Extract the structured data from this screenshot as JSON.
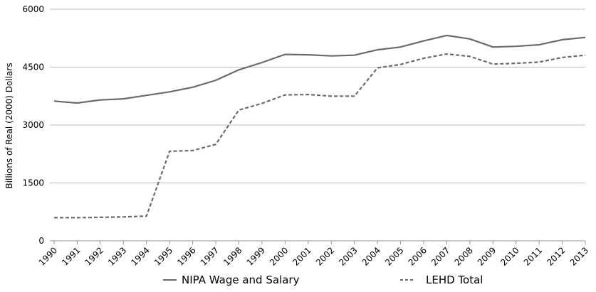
{
  "chart_data": {
    "type": "line",
    "title": "",
    "xlabel": "",
    "ylabel": "Billions of Real (2000) Dollars",
    "categories": [
      "1990",
      "1991",
      "1992",
      "1993",
      "1994",
      "1995",
      "1996",
      "1997",
      "1998",
      "1999",
      "2000",
      "2001",
      "2002",
      "2003",
      "2004",
      "2005",
      "2006",
      "2007",
      "2008",
      "2009",
      "2010",
      "2011",
      "2012",
      "2013"
    ],
    "ylim": [
      0,
      6000
    ],
    "yticks": [
      "0",
      "1500",
      "3000",
      "4500",
      "6000"
    ],
    "grid": "horizontal",
    "legend_position": "bottom",
    "series": [
      {
        "name": "NIPA Wage and Salary",
        "style": "solid",
        "color": "#6b6b6b",
        "values": [
          3620,
          3570,
          3650,
          3680,
          3770,
          3860,
          3980,
          4160,
          4430,
          4620,
          4830,
          4820,
          4790,
          4810,
          4950,
          5020,
          5180,
          5320,
          5230,
          5020,
          5040,
          5080,
          5210,
          5270
        ]
      },
      {
        "name": "LEHD Total",
        "style": "dashed",
        "color": "#6b6b6b",
        "values": [
          600,
          600,
          610,
          620,
          640,
          2320,
          2340,
          2500,
          3390,
          3560,
          3780,
          3790,
          3750,
          3750,
          4480,
          4570,
          4730,
          4840,
          4780,
          4580,
          4600,
          4630,
          4750,
          4810
        ]
      }
    ]
  }
}
